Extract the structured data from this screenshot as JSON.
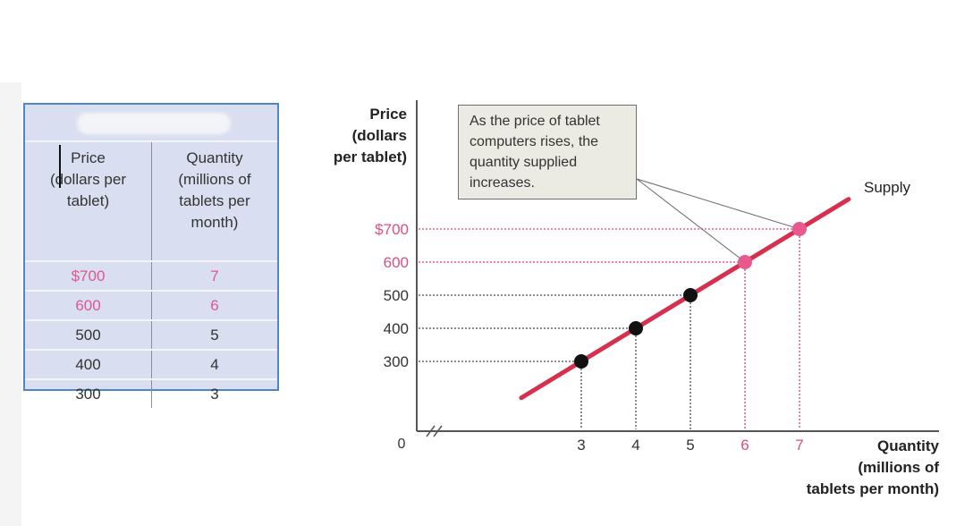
{
  "schedule": {
    "headers": [
      "Price\n(dollars per\ntablet)",
      "Quantity\n(millions of\ntablets per\nmonth)"
    ],
    "rows": [
      {
        "price": "$700",
        "quantity": "7",
        "highlight": true
      },
      {
        "price": "600",
        "quantity": "6",
        "highlight": true
      },
      {
        "price": "500",
        "quantity": "5",
        "highlight": false
      },
      {
        "price": "400",
        "quantity": "4",
        "highlight": false
      },
      {
        "price": "300",
        "quantity": "3",
        "highlight": false
      }
    ]
  },
  "chart_data": {
    "type": "line",
    "ylabel": "Price\n(dollars\nper tablet)",
    "xlabel": "Quantity\n(millions of\ntablets per month)",
    "y_ticks": [
      "$700",
      "600",
      "500",
      "400",
      "300"
    ],
    "y_tick_values": [
      700,
      600,
      500,
      400,
      300
    ],
    "x_ticks": [
      "3",
      "4",
      "5",
      "6",
      "7"
    ],
    "x_tick_values": [
      3,
      4,
      5,
      6,
      7
    ],
    "origin_label": "0",
    "series": [
      {
        "name": "Supply",
        "x": [
          3,
          4,
          5,
          6,
          7
        ],
        "y": [
          300,
          400,
          500,
          600,
          700
        ],
        "highlight_points": [
          6,
          7
        ],
        "line_color": "#d7304f",
        "point_color": "#111111",
        "highlight_color": "#e85a8e"
      }
    ],
    "annotation": "As the price of tablet\ncomputers rises, the\nquantity supplied\nincreases.",
    "axis_break": true,
    "dotted_guides": true
  }
}
